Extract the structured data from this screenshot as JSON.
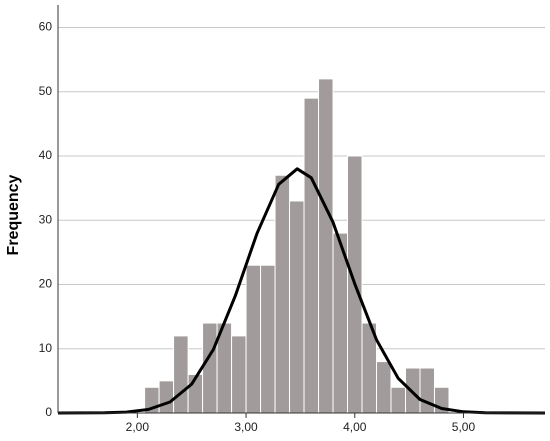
{
  "chart_data": {
    "type": "histogram",
    "y_label": "Frequency",
    "bins": [
      2.0667,
      2.2,
      2.3333,
      2.4667,
      2.6,
      2.7333,
      2.8667,
      3.0,
      3.1333,
      3.2667,
      3.4,
      3.5333,
      3.6667,
      3.8,
      3.9333,
      4.0667,
      4.2,
      4.3333,
      4.4667,
      4.6,
      4.7333,
      4.8667
    ],
    "values": [
      4,
      5,
      12,
      6,
      14,
      14,
      12,
      23,
      23,
      37,
      33,
      49,
      52,
      28,
      40,
      14,
      8,
      4,
      7,
      7,
      4
    ],
    "color": "#a19b9b",
    "curve": {
      "color": "#000000",
      "x": [
        1.27,
        1.5,
        1.7,
        1.9,
        2.1,
        2.3,
        2.5,
        2.7,
        2.9,
        3.1,
        3.3,
        3.47,
        3.6,
        3.8,
        4.0,
        4.2,
        4.4,
        4.6,
        4.8,
        5.0,
        5.2,
        5.4,
        5.75
      ],
      "values": [
        0,
        0.01,
        0.03,
        0.14,
        0.54,
        1.71,
        4.5,
        9.9,
        18.2,
        27.9,
        35.6,
        38,
        36.6,
        29.7,
        20.1,
        11.4,
        5.4,
        2.1,
        0.7,
        0.19,
        0.04,
        0.01,
        0
      ]
    },
    "xlim": [
      1.27,
      5.75
    ],
    "xticks": [
      {
        "value": 2,
        "label": "2,00"
      },
      {
        "value": 3,
        "label": "3,00"
      },
      {
        "value": 4,
        "label": "4,00"
      },
      {
        "value": 5,
        "label": "5,00"
      }
    ],
    "ylim": [
      0,
      63.5
    ],
    "yticks": [
      0,
      10,
      20,
      30,
      40,
      50,
      60
    ],
    "grid": true
  }
}
